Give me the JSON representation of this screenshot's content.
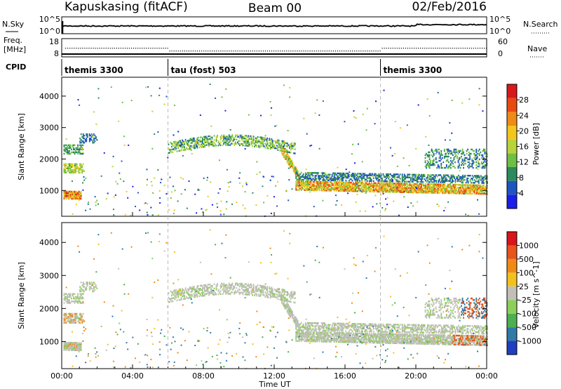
{
  "header": {
    "station": "Kapuskasing (fitACF)",
    "beam": "Beam 00",
    "date": "02/Feb/2016"
  },
  "noise_panel": {
    "left_label": "N.Sky",
    "left_ticks": [
      "10^5",
      "10^0"
    ],
    "right_label": "N.Search",
    "right_ticks": [
      "10^5",
      "10^0"
    ]
  },
  "freq_panel": {
    "left_label_1": "Freq.",
    "left_label_2": "[MHz]",
    "left_ticks": [
      "18",
      "8"
    ],
    "right_label": "Nave",
    "right_ticks": [
      "60",
      "0"
    ]
  },
  "cpid_panel": {
    "label": "CPID",
    "segments": [
      {
        "label": "themis 3300",
        "start_hour": 0
      },
      {
        "label": "tau (fost) 503",
        "start_hour": 6
      },
      {
        "label": "themis 3300",
        "start_hour": 18
      }
    ]
  },
  "chart_data": [
    {
      "type": "heatmap",
      "quantity": "Power",
      "colorbar_label": "Power [dB]",
      "colorbar_ticks": [
        "28",
        "24",
        "20",
        "16",
        "12",
        "8",
        "4"
      ],
      "colorbar_values": [
        28,
        24,
        20,
        16,
        12,
        8,
        4
      ],
      "clim": [
        0,
        32
      ],
      "ylabel": "Slant Range [km]",
      "yticks": [
        "4000",
        "3000",
        "2000",
        "1000"
      ],
      "ytick_values": [
        4000,
        3000,
        2000,
        1000
      ],
      "ylim": [
        180,
        4600
      ],
      "xlim_hours": [
        0,
        24
      ],
      "colors": [
        "#1a1ee8",
        "#1f55c2",
        "#2b8a5e",
        "#6fbf46",
        "#b8d43a",
        "#f2c61c",
        "#f08a17",
        "#e84a12",
        "#d7191c"
      ],
      "features": [
        {
          "name": "scatter band",
          "hours": [
            0.1,
            1.1
          ],
          "range_km": [
            700,
            1000
          ]
        },
        {
          "name": "main band",
          "hours": [
            12.5,
            24
          ],
          "range_km": [
            900,
            1500
          ]
        },
        {
          "name": "upper patch",
          "hours": [
            6,
            13
          ],
          "range_km": [
            2200,
            3000
          ]
        }
      ]
    },
    {
      "type": "heatmap",
      "quantity": "Velocity",
      "colorbar_label": "Velocity [m s^-1]",
      "colorbar_ticks": [
        "1000",
        "500",
        "100",
        "25",
        "-25",
        "-100",
        "-500",
        "-1000"
      ],
      "colorbar_values": [
        1000,
        500,
        100,
        25,
        -25,
        -100,
        -500,
        -1000
      ],
      "ylabel": "Slant Range [km]",
      "yticks": [
        "4000",
        "3000",
        "2000",
        "1000"
      ],
      "ytick_values": [
        4000,
        3000,
        2000,
        1000
      ],
      "ylim": [
        180,
        4600
      ],
      "xlim_hours": [
        0,
        24
      ],
      "colors": [
        "#1f3fbf",
        "#2f7aa8",
        "#4caf50",
        "#8ccf5a",
        "#c0c0b8",
        "#f2c21c",
        "#f08a17",
        "#e8541a",
        "#d9141c"
      ],
      "xlabel": "Time UT",
      "xticks": [
        "00:00",
        "04:00",
        "08:00",
        "12:00",
        "16:00",
        "20:00",
        "00:00"
      ],
      "xtick_hours": [
        0,
        4,
        8,
        12,
        16,
        20,
        24
      ]
    }
  ]
}
